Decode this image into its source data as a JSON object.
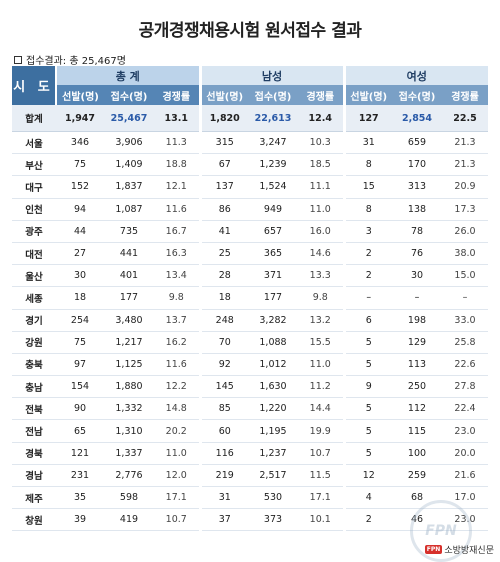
{
  "title": "공개경쟁채용시험 원서접수 결과",
  "summary": "접수결과: 총 25,467명",
  "header": {
    "region": "시 도",
    "groups": [
      "총 계",
      "남성",
      "여성"
    ],
    "subcols": [
      "선발(명)",
      "접수(명)",
      "경쟁률"
    ]
  },
  "total_row": {
    "region": "합계",
    "cells": [
      "1,947",
      "25,467",
      "13.1",
      "1,820",
      "22,613",
      "12.4",
      "127",
      "2,854",
      "22.5"
    ]
  },
  "rows": [
    {
      "region": "서울",
      "cells": [
        "346",
        "3,906",
        "11.3",
        "315",
        "3,247",
        "10.3",
        "31",
        "659",
        "21.3"
      ]
    },
    {
      "region": "부산",
      "cells": [
        "75",
        "1,409",
        "18.8",
        "67",
        "1,239",
        "18.5",
        "8",
        "170",
        "21.3"
      ]
    },
    {
      "region": "대구",
      "cells": [
        "152",
        "1,837",
        "12.1",
        "137",
        "1,524",
        "11.1",
        "15",
        "313",
        "20.9"
      ]
    },
    {
      "region": "인천",
      "cells": [
        "94",
        "1,087",
        "11.6",
        "86",
        "949",
        "11.0",
        "8",
        "138",
        "17.3"
      ]
    },
    {
      "region": "광주",
      "cells": [
        "44",
        "735",
        "16.7",
        "41",
        "657",
        "16.0",
        "3",
        "78",
        "26.0"
      ]
    },
    {
      "region": "대전",
      "cells": [
        "27",
        "441",
        "16.3",
        "25",
        "365",
        "14.6",
        "2",
        "76",
        "38.0"
      ]
    },
    {
      "region": "울산",
      "cells": [
        "30",
        "401",
        "13.4",
        "28",
        "371",
        "13.3",
        "2",
        "30",
        "15.0"
      ]
    },
    {
      "region": "세종",
      "cells": [
        "18",
        "177",
        "9.8",
        "18",
        "177",
        "9.8",
        "–",
        "–",
        "–"
      ]
    },
    {
      "region": "경기",
      "cells": [
        "254",
        "3,480",
        "13.7",
        "248",
        "3,282",
        "13.2",
        "6",
        "198",
        "33.0"
      ]
    },
    {
      "region": "강원",
      "cells": [
        "75",
        "1,217",
        "16.2",
        "70",
        "1,088",
        "15.5",
        "5",
        "129",
        "25.8"
      ]
    },
    {
      "region": "충북",
      "cells": [
        "97",
        "1,125",
        "11.6",
        "92",
        "1,012",
        "11.0",
        "5",
        "113",
        "22.6"
      ]
    },
    {
      "region": "충남",
      "cells": [
        "154",
        "1,880",
        "12.2",
        "145",
        "1,630",
        "11.2",
        "9",
        "250",
        "27.8"
      ]
    },
    {
      "region": "전북",
      "cells": [
        "90",
        "1,332",
        "14.8",
        "85",
        "1,220",
        "14.4",
        "5",
        "112",
        "22.4"
      ]
    },
    {
      "region": "전남",
      "cells": [
        "65",
        "1,310",
        "20.2",
        "60",
        "1,195",
        "19.9",
        "5",
        "115",
        "23.0"
      ]
    },
    {
      "region": "경북",
      "cells": [
        "121",
        "1,337",
        "11.0",
        "116",
        "1,237",
        "10.7",
        "5",
        "100",
        "20.0"
      ]
    },
    {
      "region": "경남",
      "cells": [
        "231",
        "2,776",
        "12.0",
        "219",
        "2,517",
        "11.5",
        "12",
        "259",
        "21.6"
      ]
    },
    {
      "region": "제주",
      "cells": [
        "35",
        "598",
        "17.1",
        "31",
        "530",
        "17.1",
        "4",
        "68",
        "17.0"
      ]
    },
    {
      "region": "창원",
      "cells": [
        "39",
        "419",
        "10.7",
        "37",
        "373",
        "10.1",
        "2",
        "46",
        "23.0"
      ]
    }
  ],
  "footer": {
    "logo_text": "소방방재신문",
    "logo_mark": "FPN"
  },
  "watermark": "FPN"
}
